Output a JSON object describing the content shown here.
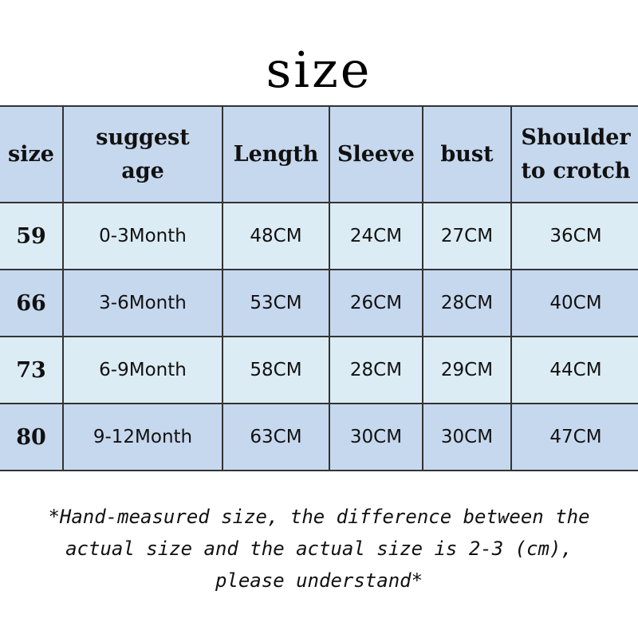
{
  "title": "size",
  "table": {
    "headers": [
      "size",
      "suggest age",
      "Length",
      "Sleeve",
      "bust",
      "Shoulder to crotch"
    ],
    "rows": [
      [
        "59",
        "0-3Month",
        "48CM",
        "24CM",
        "27CM",
        "36CM"
      ],
      [
        "66",
        "3-6Month",
        "53CM",
        "26CM",
        "28CM",
        "40CM"
      ],
      [
        "73",
        "6-9Month",
        "58CM",
        "28CM",
        "29CM",
        "44CM"
      ],
      [
        "80",
        "9-12Month",
        "63CM",
        "30CM",
        "30CM",
        "47CM"
      ]
    ]
  },
  "note": {
    "line1": "*Hand-measured size, the difference between the",
    "line2": "actual size and the actual size is 2-3 (cm),",
    "line3": "please understand*"
  },
  "colors": {
    "header_bg": "#c6d8ee",
    "row_light": "#dcecf4",
    "row_dark": "#c6d8ee"
  }
}
